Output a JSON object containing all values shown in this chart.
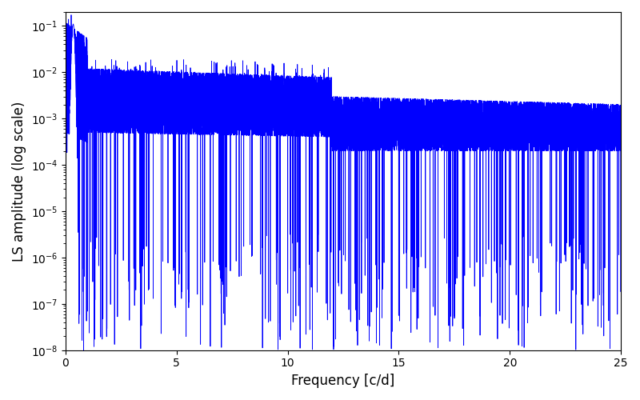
{
  "xlabel": "Frequency [c/d]",
  "ylabel": "LS amplitude (log scale)",
  "xlim": [
    0,
    25
  ],
  "ylim": [
    1e-08,
    0.2
  ],
  "xticks": [
    0,
    5,
    10,
    15,
    20,
    25
  ],
  "line_color": "#0000ff",
  "line_width": 0.6,
  "background_color": "#ffffff",
  "figsize": [
    8.0,
    5.0
  ],
  "dpi": 100,
  "seed": 777,
  "n_points": 10000
}
